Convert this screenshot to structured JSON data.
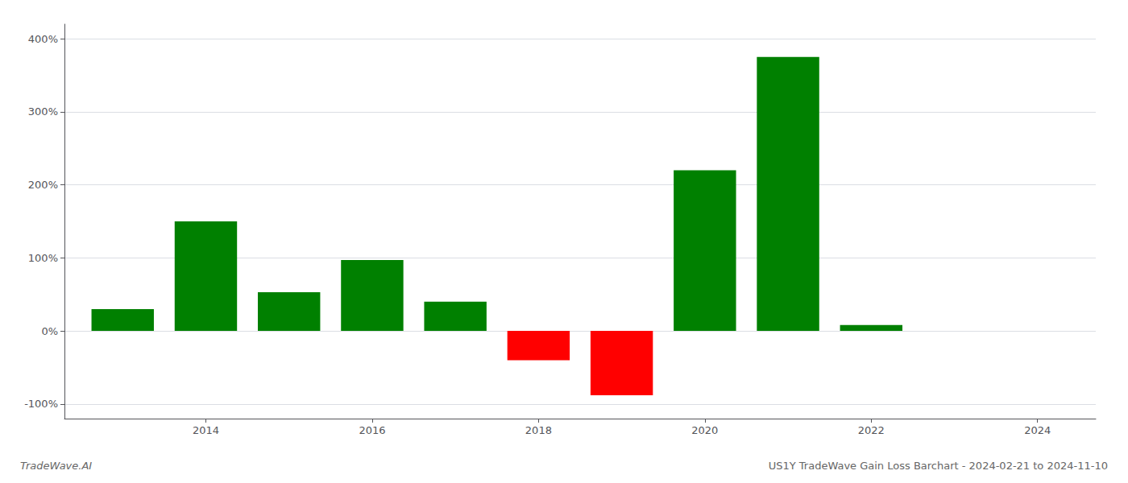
{
  "chart_data": {
    "type": "bar",
    "x": [
      2013,
      2014,
      2015,
      2016,
      2017,
      2018,
      2019,
      2020,
      2021,
      2022,
      2023
    ],
    "values": [
      30,
      150,
      53,
      97,
      40,
      -40,
      -88,
      220,
      375,
      8,
      0
    ],
    "colors": [
      "#008000",
      "#008000",
      "#008000",
      "#008000",
      "#008000",
      "#ff0000",
      "#ff0000",
      "#008000",
      "#008000",
      "#008000",
      "#008000"
    ],
    "xlim": [
      2012.3,
      2024.7
    ],
    "xticks": [
      2014,
      2016,
      2018,
      2020,
      2022,
      2024
    ],
    "ylim": [
      -120,
      420
    ],
    "yticks": [
      {
        "value": -100,
        "label": "-100%"
      },
      {
        "value": 0,
        "label": "0%"
      },
      {
        "value": 100,
        "label": "100%"
      },
      {
        "value": 200,
        "label": "200%"
      },
      {
        "value": 300,
        "label": "300%"
      },
      {
        "value": 400,
        "label": "400%"
      }
    ],
    "grid": true,
    "annotations": [
      "TradeWave.AI",
      "US1Y TradeWave Gain Loss Barchart - 2024-02-21 to 2024-11-10"
    ]
  }
}
